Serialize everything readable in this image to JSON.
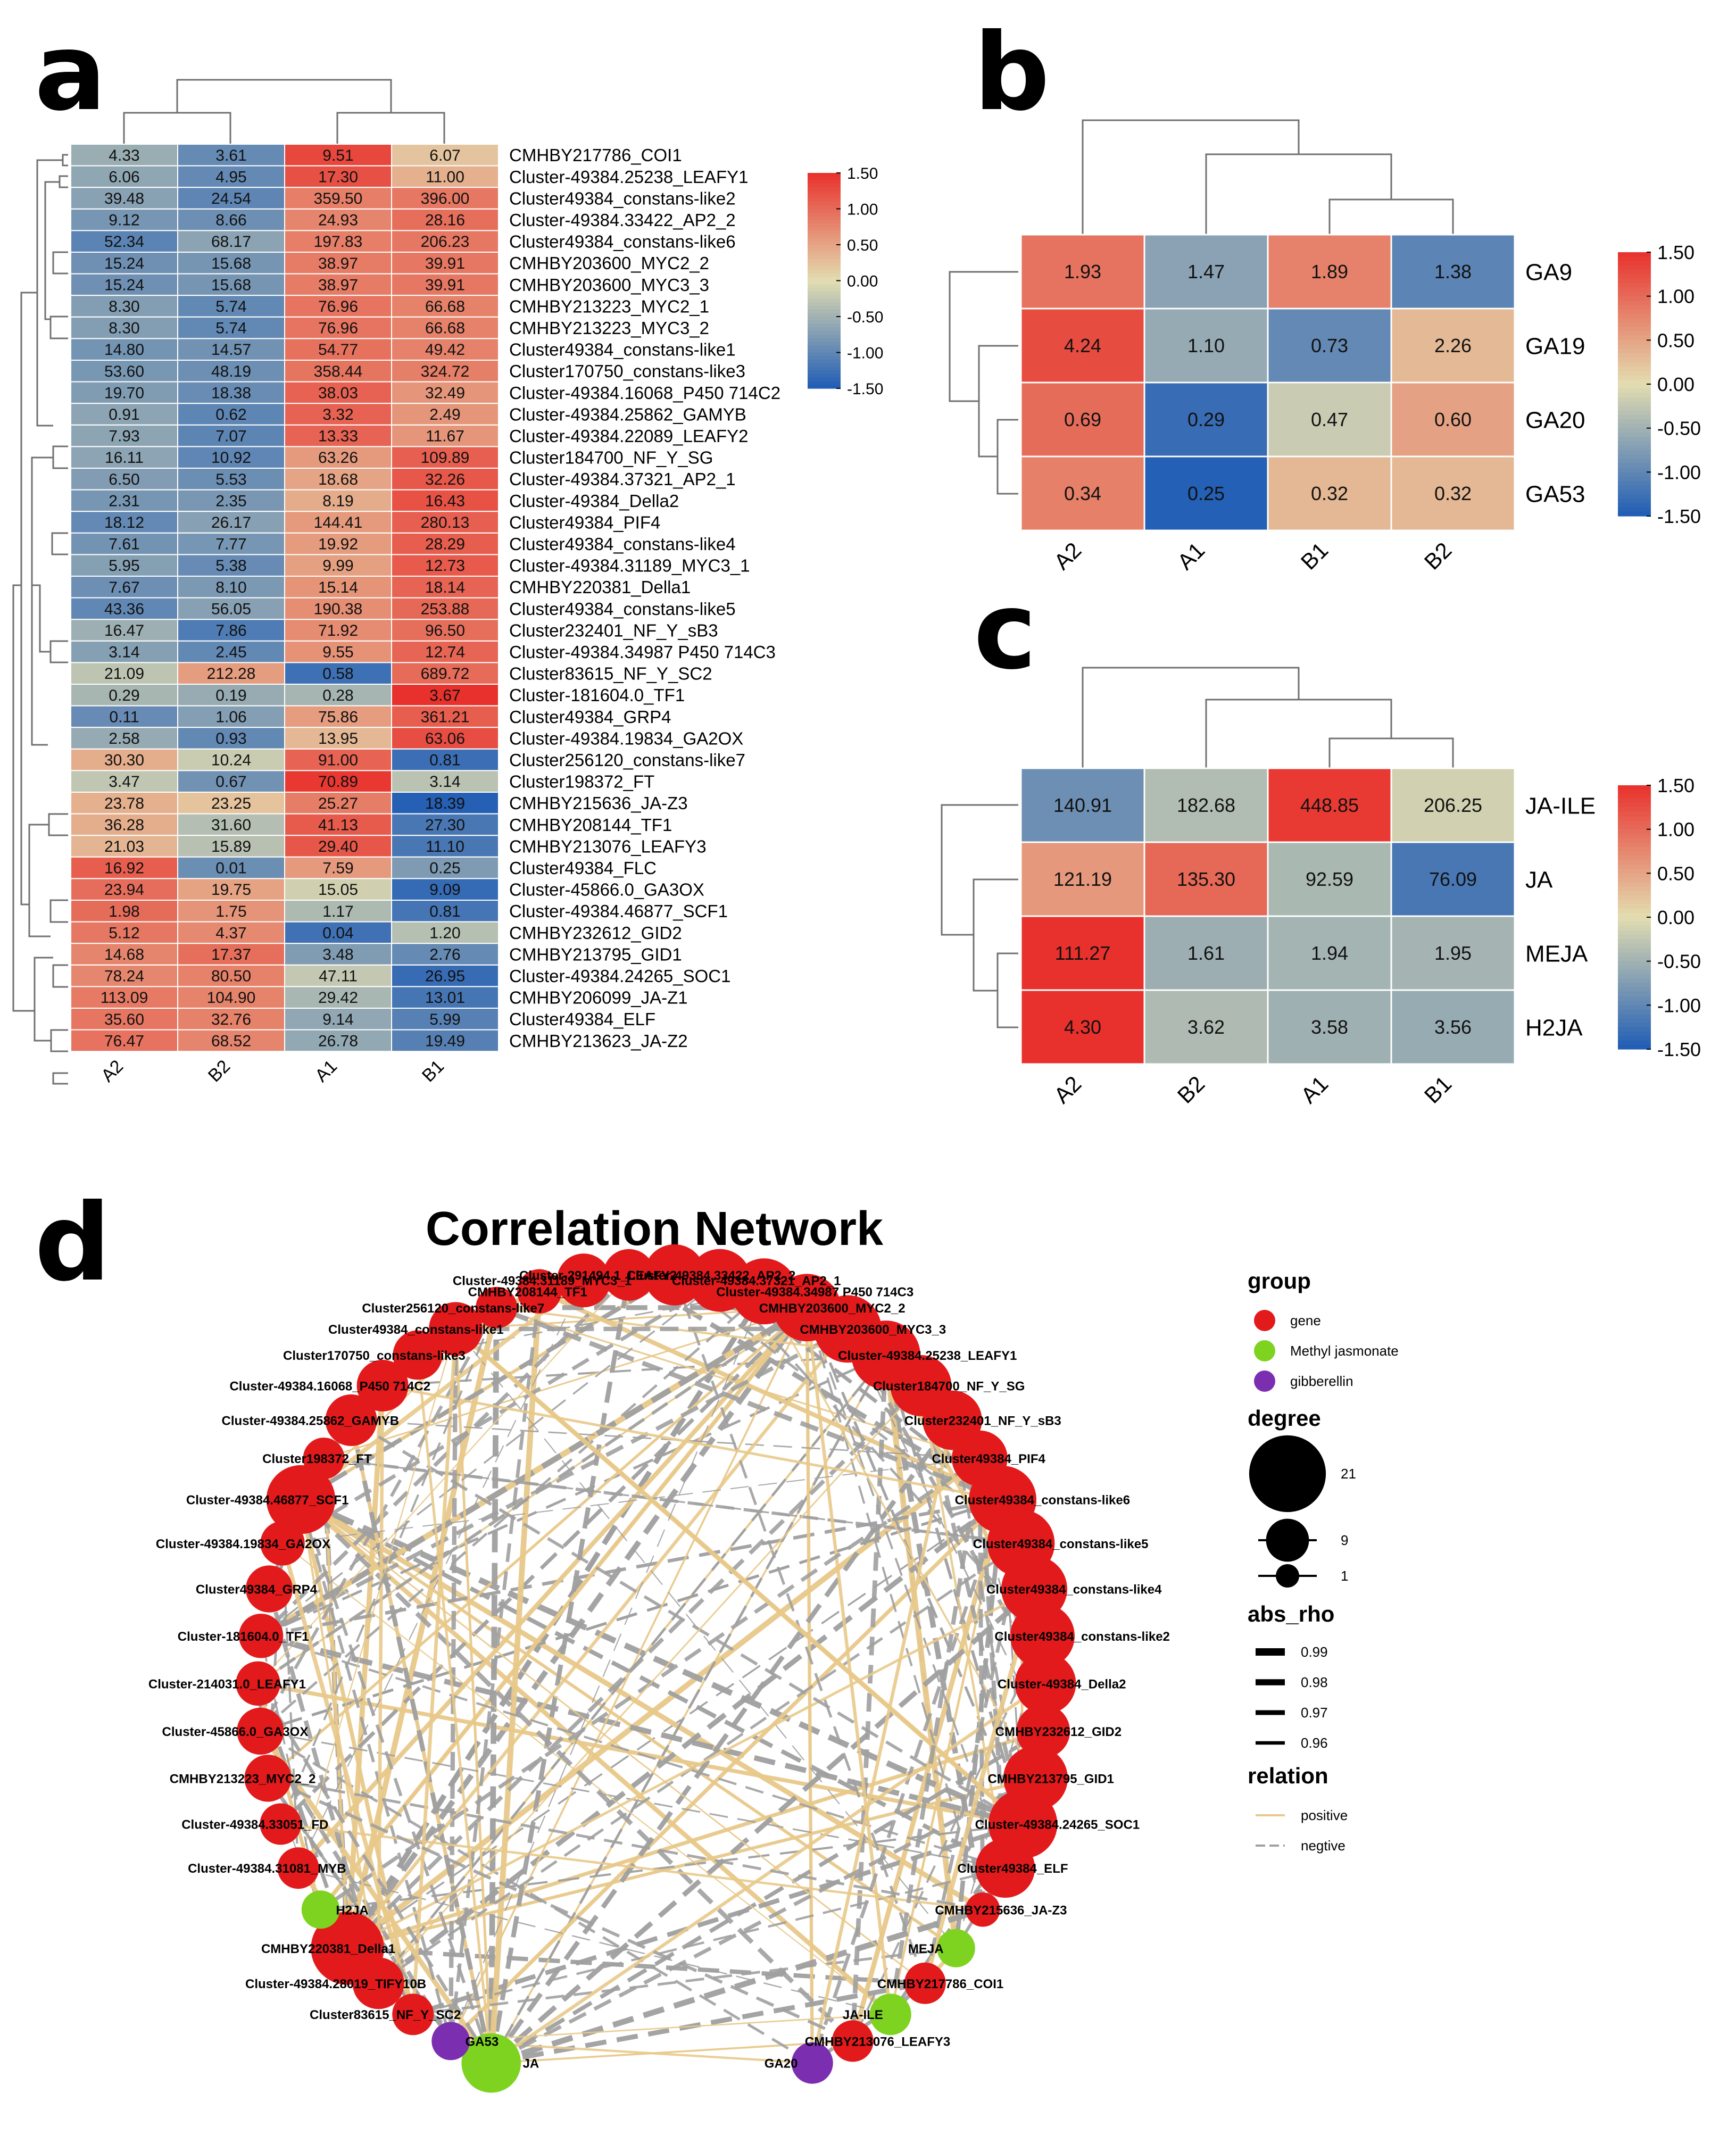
{
  "panel_labels": {
    "a": "a",
    "b": "b",
    "c": "c",
    "d": "d"
  },
  "network_title": "Correlation Network",
  "colors": {
    "heat_low": "#1f5cb5",
    "heat_mid": "#e3ddb1",
    "heat_high": "#e8312c",
    "gene": "#e31a1c",
    "methyl_jasmonate": "#7ed321",
    "gibberellin": "#7b2fb0",
    "positive_edge": "#e8c98a",
    "negative_edge": "#a0a0a0"
  },
  "chart_data": [
    {
      "type": "heatmap",
      "panel": "a",
      "columns": [
        "A2",
        "B2",
        "A1",
        "B1"
      ],
      "colorbar": {
        "ticks": [
          "1.50",
          "1.00",
          "0.50",
          "0.00",
          "-0.50",
          "-1.00",
          "-1.50"
        ],
        "range": [
          -1.5,
          1.5
        ]
      },
      "rows": [
        "CMHBY217786_COI1",
        "Cluster-49384.25238_LEAFY1",
        "Cluster49384_constans-like2",
        "Cluster-49384.33422_AP2_2",
        "Cluster49384_constans-like6",
        "CMHBY203600_MYC2_2",
        "CMHBY203600_MYC3_3",
        "CMHBY213223_MYC2_1",
        "CMHBY213223_MYC3_2",
        "Cluster49384_constans-like1",
        "Cluster170750_constans-like3",
        "Cluster-49384.16068_P450 714C2",
        "Cluster-49384.25862_GAMYB",
        "Cluster-49384.22089_LEAFY2",
        "Cluster184700_NF_Y_SG",
        "Cluster-49384.37321_AP2_1",
        "Cluster-49384_Della2",
        "Cluster49384_PIF4",
        "Cluster49384_constans-like4",
        "Cluster-49384.31189_MYC3_1",
        "CMHBY220381_Della1",
        "Cluster49384_constans-like5",
        "Cluster232401_NF_Y_sB3",
        "Cluster-49384.34987 P450 714C3",
        "Cluster83615_NF_Y_SC2",
        "Cluster-181604.0_TF1",
        "Cluster49384_GRP4",
        "Cluster-49384.19834_GA2OX",
        "Cluster256120_constans-like7",
        "Cluster198372_FT",
        "CMHBY215636_JA-Z3",
        "CMHBY208144_TF1",
        "CMHBY213076_LEAFY3",
        "Cluster49384_FLC",
        "Cluster-45866.0_GA3OX",
        "Cluster-49384.46877_SCF1",
        "CMHBY232612_GID2",
        "CMHBY213795_GID1",
        "Cluster-49384.24265_SOC1",
        "CMHBY206099_JA-Z1",
        "Cluster49384_ELF",
        "CMHBY213623_JA-Z2"
      ],
      "values": [
        [
          "4.33",
          "3.61",
          "9.51",
          "6.07"
        ],
        [
          "6.06",
          "4.95",
          "17.30",
          "11.00"
        ],
        [
          "39.48",
          "24.54",
          "359.50",
          "396.00"
        ],
        [
          "9.12",
          "8.66",
          "24.93",
          "28.16"
        ],
        [
          "52.34",
          "68.17",
          "197.83",
          "206.23"
        ],
        [
          "15.24",
          "15.68",
          "38.97",
          "39.91"
        ],
        [
          "15.24",
          "15.68",
          "38.97",
          "39.91"
        ],
        [
          "8.30",
          "5.74",
          "76.96",
          "66.68"
        ],
        [
          "8.30",
          "5.74",
          "76.96",
          "66.68"
        ],
        [
          "14.80",
          "14.57",
          "54.77",
          "49.42"
        ],
        [
          "53.60",
          "48.19",
          "358.44",
          "324.72"
        ],
        [
          "19.70",
          "18.38",
          "38.03",
          "32.49"
        ],
        [
          "0.91",
          "0.62",
          "3.32",
          "2.49"
        ],
        [
          "7.93",
          "7.07",
          "13.33",
          "11.67"
        ],
        [
          "16.11",
          "10.92",
          "63.26",
          "109.89"
        ],
        [
          "6.50",
          "5.53",
          "18.68",
          "32.26"
        ],
        [
          "2.31",
          "2.35",
          "8.19",
          "16.43"
        ],
        [
          "18.12",
          "26.17",
          "144.41",
          "280.13"
        ],
        [
          "7.61",
          "7.77",
          "19.92",
          "28.29"
        ],
        [
          "5.95",
          "5.38",
          "9.99",
          "12.73"
        ],
        [
          "7.67",
          "8.10",
          "15.14",
          "18.14"
        ],
        [
          "43.36",
          "56.05",
          "190.38",
          "253.88"
        ],
        [
          "16.47",
          "7.86",
          "71.92",
          "96.50"
        ],
        [
          "3.14",
          "2.45",
          "9.55",
          "12.74"
        ],
        [
          "21.09",
          "212.28",
          "0.58",
          "689.72"
        ],
        [
          "0.29",
          "0.19",
          "0.28",
          "3.67"
        ],
        [
          "0.11",
          "1.06",
          "75.86",
          "361.21"
        ],
        [
          "2.58",
          "0.93",
          "13.95",
          "63.06"
        ],
        [
          "30.30",
          "10.24",
          "91.00",
          "0.81"
        ],
        [
          "3.47",
          "0.67",
          "70.89",
          "3.14"
        ],
        [
          "23.78",
          "23.25",
          "25.27",
          "18.39"
        ],
        [
          "36.28",
          "31.60",
          "41.13",
          "27.30"
        ],
        [
          "21.03",
          "15.89",
          "29.40",
          "11.10"
        ],
        [
          "16.92",
          "0.01",
          "7.59",
          "0.25"
        ],
        [
          "23.94",
          "19.75",
          "15.05",
          "9.09"
        ],
        [
          "1.98",
          "1.75",
          "1.17",
          "0.81"
        ],
        [
          "5.12",
          "4.37",
          "0.04",
          "1.20"
        ],
        [
          "14.68",
          "17.37",
          "3.48",
          "2.76"
        ],
        [
          "78.24",
          "80.50",
          "47.11",
          "26.95"
        ],
        [
          "113.09",
          "104.90",
          "29.42",
          "13.01"
        ],
        [
          "35.60",
          "32.76",
          "9.14",
          "5.99"
        ],
        [
          "76.47",
          "68.52",
          "26.78",
          "19.49"
        ]
      ]
    },
    {
      "type": "heatmap",
      "panel": "b",
      "columns": [
        "A2",
        "A1",
        "B1",
        "B2"
      ],
      "rows": [
        "GA9",
        "GA19",
        "GA20",
        "GA53"
      ],
      "colorbar": {
        "ticks": [
          "1.50",
          "1.00",
          "0.50",
          "0.00",
          "-0.50",
          "-1.00",
          "-1.50"
        ],
        "range": [
          -1.5,
          1.5
        ]
      },
      "values": [
        [
          "1.93",
          "1.47",
          "1.89",
          "1.38"
        ],
        [
          "4.24",
          "1.10",
          "0.73",
          "2.26"
        ],
        [
          "0.69",
          "0.29",
          "0.47",
          "0.60"
        ],
        [
          "0.34",
          "0.25",
          "0.32",
          "0.32"
        ]
      ]
    },
    {
      "type": "heatmap",
      "panel": "c",
      "columns": [
        "A2",
        "B2",
        "A1",
        "B1"
      ],
      "rows": [
        "JA-ILE",
        "JA",
        "MEJA",
        "H2JA"
      ],
      "colorbar": {
        "ticks": [
          "1.50",
          "1.00",
          "0.50",
          "0.00",
          "-0.50",
          "-1.00",
          "-1.50"
        ],
        "range": [
          -1.5,
          1.5
        ]
      },
      "values": [
        [
          "140.91",
          "182.68",
          "448.85",
          "206.25"
        ],
        [
          "121.19",
          "135.30",
          "92.59",
          "76.09"
        ],
        [
          "111.27",
          "1.61",
          "1.94",
          "1.95"
        ],
        [
          "4.30",
          "3.62",
          "3.58",
          "3.56"
        ]
      ]
    }
  ],
  "network": {
    "nodes_ordered": [
      {
        "label": "JA",
        "group": "methyl",
        "degree": 12
      },
      {
        "label": "GA53",
        "group": "gibberellin",
        "degree": 3
      },
      {
        "label": "Cluster83615_NF_Y_SC2",
        "group": "gene",
        "degree": 4
      },
      {
        "label": "Cluster-49384.28019_TIFY10B",
        "group": "gene",
        "degree": 8
      },
      {
        "label": "CMHBY220381_Della1",
        "group": "gene",
        "degree": 21
      },
      {
        "label": "H2JA",
        "group": "methyl",
        "degree": 3
      },
      {
        "label": "Cluster-49384.31081_MYB",
        "group": "gene",
        "degree": 4
      },
      {
        "label": "Cluster-49384.33051_FD",
        "group": "gene",
        "degree": 4
      },
      {
        "label": "CMHBY213223_MYC2_2",
        "group": "gene",
        "degree": 6
      },
      {
        "label": "Cluster-45866.0_GA3OX",
        "group": "gene",
        "degree": 6
      },
      {
        "label": "Cluster-214031.0_LEAFY1",
        "group": "gene",
        "degree": 5
      },
      {
        "label": "Cluster-181604.0_TF1",
        "group": "gene",
        "degree": 5
      },
      {
        "label": "Cluster49384_GRP4",
        "group": "gene",
        "degree": 6
      },
      {
        "label": "Cluster-49384.19834_GA2OX",
        "group": "gene",
        "degree": 5
      },
      {
        "label": "Cluster-49384.46877_SCF1",
        "group": "gene",
        "degree": 18
      },
      {
        "label": "Cluster198372_FT",
        "group": "gene",
        "degree": 4
      },
      {
        "label": "Cluster-49384.25862_GAMYB",
        "group": "gene",
        "degree": 8
      },
      {
        "label": "Cluster-49384.16068_P450 714C2",
        "group": "gene",
        "degree": 8
      },
      {
        "label": "Cluster170750_constans-like3",
        "group": "gene",
        "degree": 7
      },
      {
        "label": "Cluster49384_constans-like1",
        "group": "gene",
        "degree": 9
      },
      {
        "label": "Cluster256120_constans-like7",
        "group": "gene",
        "degree": 4
      },
      {
        "label": "CMHBY208144_TF1",
        "group": "gene",
        "degree": 5
      },
      {
        "label": "Cluster-49384.31189_MYC3_1",
        "group": "gene",
        "degree": 9
      },
      {
        "label": "Cluster-291494.1_LEAFY2",
        "group": "gene",
        "degree": 8
      },
      {
        "label": "Cluster-49384.33422_AP2_2",
        "group": "gene",
        "degree": 13
      },
      {
        "label": "Cluster-49384.37321_AP2_1",
        "group": "gene",
        "degree": 14
      },
      {
        "label": "Cluster-49384.34987 P450 714C3",
        "group": "gene",
        "degree": 16
      },
      {
        "label": "CMHBY203600_MYC2_2",
        "group": "gene",
        "degree": 17
      },
      {
        "label": "CMHBY203600_MYC3_3",
        "group": "gene",
        "degree": 17
      },
      {
        "label": "Cluster-49384.25238_LEAFY1",
        "group": "gene",
        "degree": 18
      },
      {
        "label": "Cluster184700_NF_Y_SG",
        "group": "gene",
        "degree": 13
      },
      {
        "label": "Cluster232401_NF_Y_sB3",
        "group": "gene",
        "degree": 12
      },
      {
        "label": "Cluster49384_PIF4",
        "group": "gene",
        "degree": 10
      },
      {
        "label": "Cluster49384_constans-like6",
        "group": "gene",
        "degree": 17
      },
      {
        "label": "Cluster49384_constans-like5",
        "group": "gene",
        "degree": 17
      },
      {
        "label": "Cluster49384_constans-like4",
        "group": "gene",
        "degree": 16
      },
      {
        "label": "Cluster49384_constans-like2",
        "group": "gene",
        "degree": 15
      },
      {
        "label": "Cluster-49384_Della2",
        "group": "gene",
        "degree": 13
      },
      {
        "label": "CMHBY232612_GID2",
        "group": "gene",
        "degree": 9
      },
      {
        "label": "CMHBY213795_GID1",
        "group": "gene",
        "degree": 15
      },
      {
        "label": "Cluster-49384.24265_SOC1",
        "group": "gene",
        "degree": 18
      },
      {
        "label": "Cluster49384_ELF",
        "group": "gene",
        "degree": 12
      },
      {
        "label": "CMHBY215636_JA-Z3",
        "group": "gene",
        "degree": 2
      },
      {
        "label": "MEJA",
        "group": "methyl",
        "degree": 3
      },
      {
        "label": "CMHBY217786_COI1",
        "group": "gene",
        "degree": 4
      },
      {
        "label": "JA-ILE",
        "group": "methyl",
        "degree": 4
      },
      {
        "label": "CMHBY213076_LEAFY3",
        "group": "gene",
        "degree": 4
      },
      {
        "label": "GA20",
        "group": "gibberellin",
        "degree": 4
      }
    ],
    "legend": {
      "group_title": "group",
      "groups": [
        {
          "label": "gene",
          "color_key": "gene"
        },
        {
          "label": "Methyl jasmonate",
          "color_key": "methyl_jasmonate"
        },
        {
          "label": "gibberellin",
          "color_key": "gibberellin"
        }
      ],
      "degree_title": "degree",
      "degree_items": [
        {
          "label": "21",
          "degree": 21
        },
        {
          "label": "9",
          "degree": 9
        },
        {
          "label": "1",
          "degree": 1
        }
      ],
      "rho_title": "abs_rho",
      "rho_items": [
        {
          "label": "0.99",
          "rho": 0.99
        },
        {
          "label": "0.98",
          "rho": 0.98
        },
        {
          "label": "0.97",
          "rho": 0.97
        },
        {
          "label": "0.96",
          "rho": 0.96
        }
      ],
      "relation_title": "relation",
      "relation_items": [
        {
          "label": "positive",
          "kind": "positive"
        },
        {
          "label": "negtive",
          "kind": "negative"
        }
      ]
    }
  }
}
